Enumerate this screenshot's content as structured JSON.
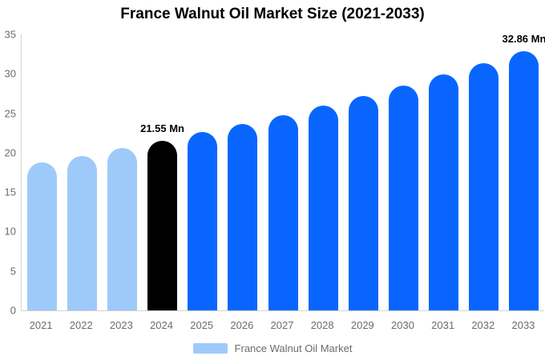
{
  "chart_data": {
    "type": "bar",
    "title": "France Walnut Oil Market Size (2021-2033)",
    "unit": "Mn",
    "categories": [
      "2021",
      "2022",
      "2023",
      "2024",
      "2025",
      "2026",
      "2027",
      "2028",
      "2029",
      "2030",
      "2031",
      "2032",
      "2033"
    ],
    "values": [
      18.72,
      19.61,
      20.55,
      21.55,
      22.58,
      23.66,
      24.79,
      25.97,
      27.21,
      28.51,
      29.88,
      31.31,
      32.86
    ],
    "bar_colors": [
      "#9ECAFA",
      "#9ECAFA",
      "#9ECAFA",
      "#000000",
      "#0866FF",
      "#0866FF",
      "#0866FF",
      "#0866FF",
      "#0866FF",
      "#0866FF",
      "#0866FF",
      "#0866FF",
      "#0866FF"
    ],
    "annotations": [
      {
        "category": "2024",
        "text": "21.55 Mn"
      },
      {
        "category": "2033",
        "text": "32.86 Mn"
      }
    ],
    "ylim": [
      0,
      35
    ],
    "yticks": [
      0,
      5,
      10,
      15,
      20,
      25,
      30,
      35
    ],
    "grid": false,
    "legend_position": "bottom"
  },
  "legend": {
    "label": "France Walnut Oil Market",
    "swatch_color": "#9ECAFA"
  },
  "colors": {
    "historical_bar": "#9ECAFA",
    "highlight_bar": "#000000",
    "forecast_bar": "#0866FF",
    "axis_line": "#d4d4d4",
    "tick_text": "#6b6b6b",
    "title_text": "#000000",
    "background": "#ffffff"
  }
}
